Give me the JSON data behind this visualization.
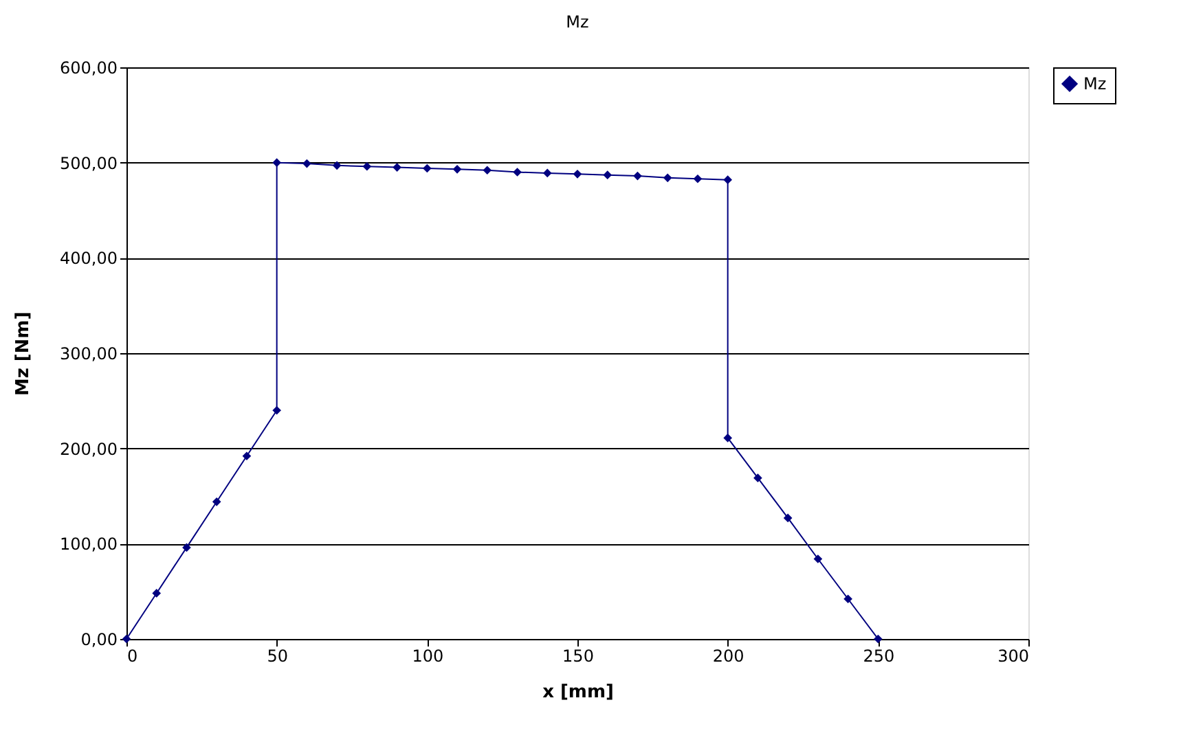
{
  "chart_data": {
    "type": "line",
    "title": "Mz",
    "xlabel": "x [mm]",
    "ylabel": "Mz [Nm]",
    "x": [
      0,
      10,
      20,
      30,
      40,
      50,
      50,
      60,
      70,
      80,
      90,
      100,
      110,
      120,
      130,
      140,
      150,
      160,
      170,
      180,
      190,
      200,
      200,
      210,
      220,
      230,
      240,
      250
    ],
    "series": [
      {
        "name": "Mz",
        "color": "#000080",
        "values": [
          0,
          48,
          96,
          144,
          192,
          240,
          500,
          499,
          497,
          496,
          495,
          494,
          493,
          492,
          490,
          489,
          488,
          487,
          486,
          484,
          483,
          482,
          211,
          169,
          127,
          84,
          42,
          0
        ]
      }
    ],
    "xlim": [
      0,
      300
    ],
    "xticks": [
      0,
      50,
      100,
      150,
      200,
      250,
      300
    ],
    "ylim": [
      0,
      600
    ],
    "yticks": [
      {
        "value": 0,
        "label": "0,00"
      },
      {
        "value": 100,
        "label": "100,00"
      },
      {
        "value": 200,
        "label": "200,00"
      },
      {
        "value": 300,
        "label": "300,00"
      },
      {
        "value": 400,
        "label": "400,00"
      },
      {
        "value": 500,
        "label": "500,00"
      },
      {
        "value": 600,
        "label": "600,00"
      }
    ],
    "grid": "y",
    "legend": "right",
    "marker": "diamond",
    "line_style": "solid"
  }
}
